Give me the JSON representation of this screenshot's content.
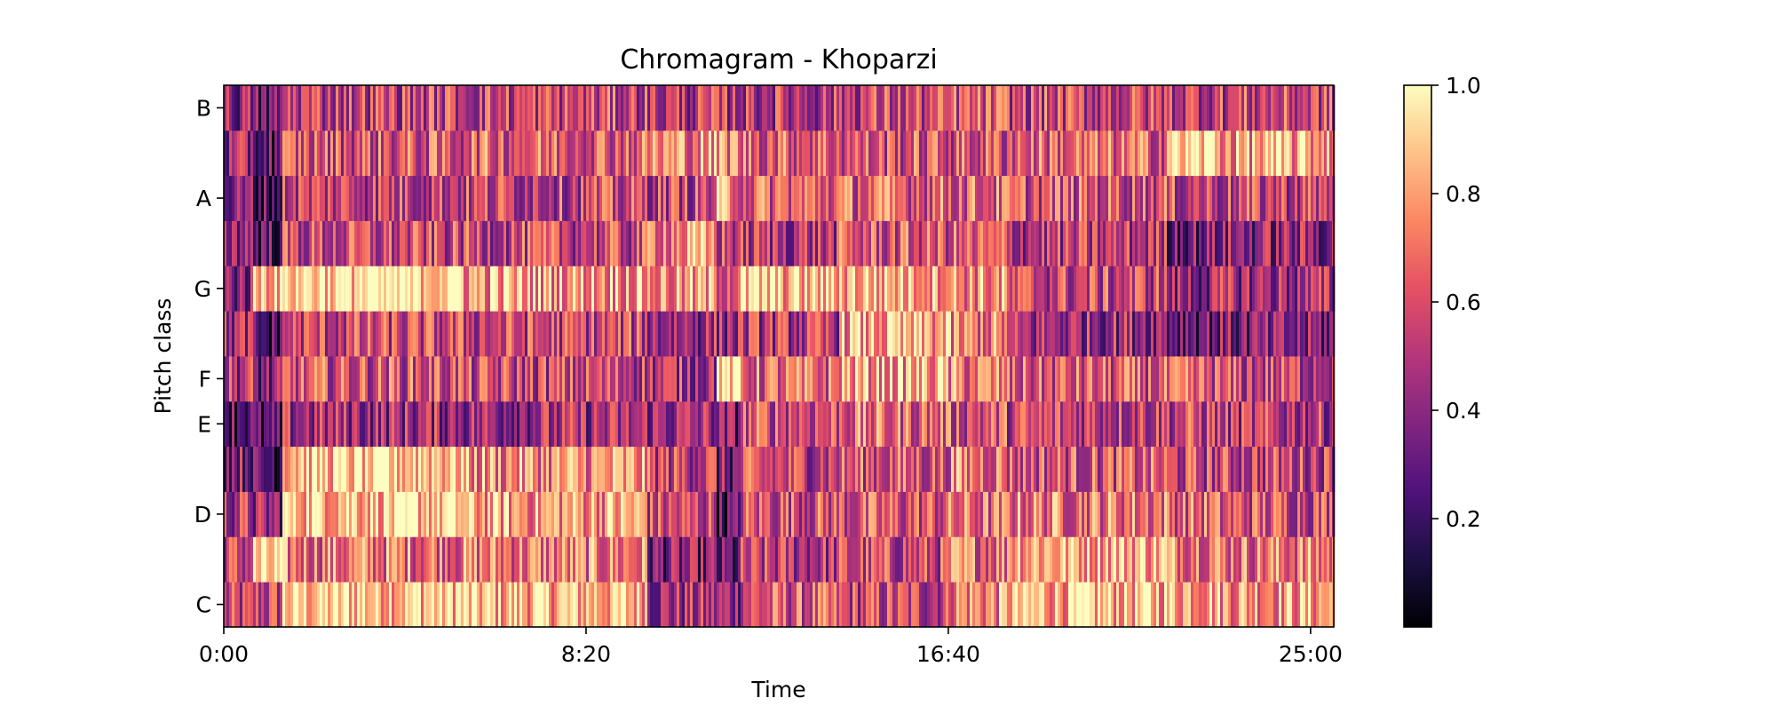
{
  "chart_data": {
    "type": "heatmap",
    "title": "Chromagram - Khoparzi",
    "xlabel": "Time",
    "ylabel": "Pitch class",
    "x_tick_labels": [
      "0:00",
      "8:20",
      "16:40",
      "25:00"
    ],
    "x_ticks_seconds": [
      0,
      500,
      1000,
      1500
    ],
    "xlim_seconds": [
      0,
      1532
    ],
    "y_rows": [
      "C",
      "C#",
      "D",
      "D#",
      "E",
      "F",
      "F#",
      "G",
      "G#",
      "A",
      "A#",
      "B"
    ],
    "y_tick_labels": [
      "C",
      "D",
      "E",
      "F",
      "G",
      "A",
      "B"
    ],
    "colormap": "magma",
    "colorbar": {
      "range": [
        0.0,
        1.0
      ],
      "tick_values": [
        0.2,
        0.4,
        0.6,
        0.8,
        1.0
      ],
      "tick_labels": [
        "0.2",
        "0.4",
        "0.6",
        "0.8",
        "1.0"
      ]
    },
    "segments_seconds": [
      0,
      40,
      80,
      330,
      585,
      680,
      715,
      850,
      1000,
      1080,
      1300,
      1370,
      1532
    ],
    "segment_mean_intensity": {
      "C": [
        0.5,
        0.55,
        0.9,
        0.85,
        0.45,
        0.45,
        0.6,
        0.55,
        0.75,
        0.85,
        0.85,
        0.8
      ],
      "C#": [
        0.55,
        0.85,
        0.7,
        0.7,
        0.35,
        0.25,
        0.5,
        0.55,
        0.7,
        0.85,
        0.75,
        0.7
      ],
      "D": [
        0.5,
        0.4,
        0.9,
        0.8,
        0.55,
        0.25,
        0.6,
        0.6,
        0.65,
        0.7,
        0.65,
        0.6
      ],
      "D#": [
        0.4,
        0.25,
        0.9,
        0.75,
        0.55,
        0.35,
        0.55,
        0.6,
        0.7,
        0.6,
        0.55,
        0.55
      ],
      "E": [
        0.3,
        0.2,
        0.45,
        0.45,
        0.45,
        0.35,
        0.6,
        0.65,
        0.6,
        0.55,
        0.55,
        0.5
      ],
      "F": [
        0.5,
        0.35,
        0.6,
        0.55,
        0.5,
        0.95,
        0.65,
        0.8,
        0.7,
        0.6,
        0.6,
        0.55
      ],
      "F#": [
        0.45,
        0.2,
        0.55,
        0.55,
        0.45,
        0.45,
        0.5,
        0.8,
        0.7,
        0.45,
        0.35,
        0.35
      ],
      "G": [
        0.4,
        0.9,
        0.95,
        0.8,
        0.75,
        0.7,
        0.85,
        0.85,
        0.75,
        0.55,
        0.4,
        0.45
      ],
      "G#": [
        0.45,
        0.3,
        0.55,
        0.55,
        0.75,
        0.55,
        0.5,
        0.6,
        0.6,
        0.5,
        0.35,
        0.4
      ],
      "A": [
        0.35,
        0.25,
        0.55,
        0.55,
        0.55,
        0.75,
        0.65,
        0.65,
        0.65,
        0.6,
        0.55,
        0.55
      ],
      "A#": [
        0.4,
        0.3,
        0.6,
        0.65,
        0.75,
        0.75,
        0.65,
        0.6,
        0.6,
        0.65,
        0.9,
        0.8
      ],
      "B": [
        0.4,
        0.3,
        0.55,
        0.55,
        0.5,
        0.5,
        0.5,
        0.55,
        0.6,
        0.55,
        0.55,
        0.55
      ]
    },
    "grid": false,
    "legend": "colorbar-right"
  }
}
